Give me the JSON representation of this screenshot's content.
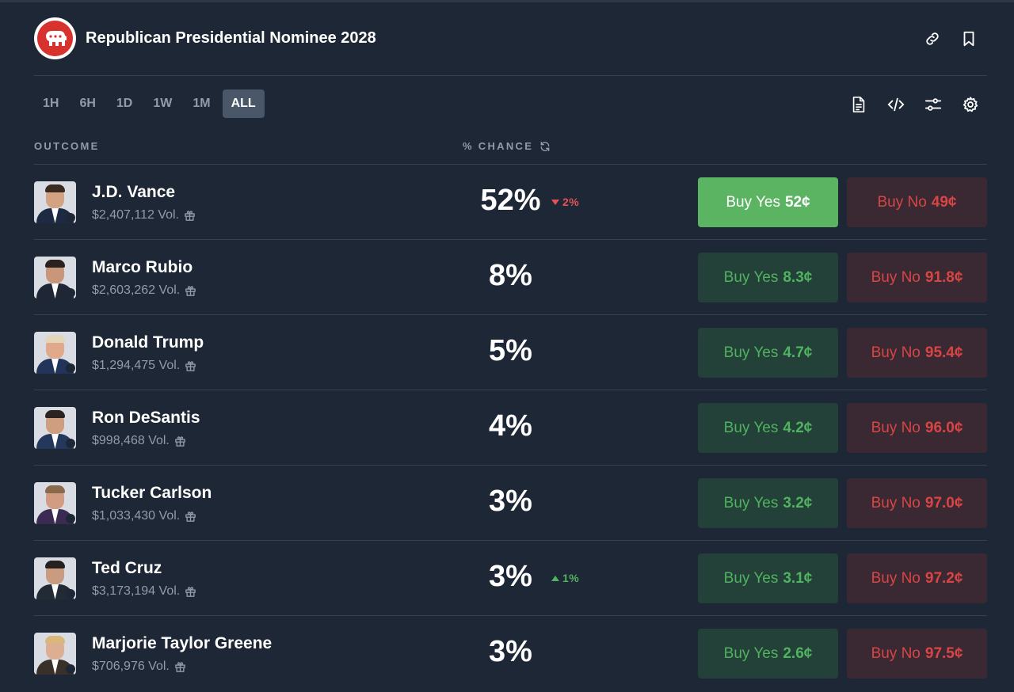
{
  "market": {
    "title": "Republican Presidential Nominee 2028",
    "logo_icon": "republican-elephant-icon"
  },
  "header_actions": [
    "link-icon",
    "bookmark-icon"
  ],
  "time_ranges": [
    "1H",
    "6H",
    "1D",
    "1W",
    "1M",
    "ALL"
  ],
  "active_range": "ALL",
  "tools": [
    "document-icon",
    "code-icon",
    "sliders-icon",
    "settings-icon"
  ],
  "columns": {
    "outcome": "OUTCOME",
    "chance": "% CHANCE"
  },
  "colors": {
    "background": "#1e2735",
    "yes_green": "#4fb35f",
    "yes_primary": "#5bb462",
    "no_red": "#d84545",
    "down_red": "#e25454"
  },
  "outcomes": [
    {
      "name": "J.D. Vance",
      "volume": "$2,407,112 Vol.",
      "chance": "52%",
      "change": "2%",
      "change_dir": "down",
      "yes_label": "Buy Yes",
      "yes_price": "52¢",
      "no_label": "Buy No",
      "no_price": "49¢",
      "highlight": true
    },
    {
      "name": "Marco Rubio",
      "volume": "$2,603,262 Vol.",
      "chance": "8%",
      "change": "",
      "change_dir": "",
      "yes_label": "Buy Yes",
      "yes_price": "8.3¢",
      "no_label": "Buy No",
      "no_price": "91.8¢",
      "highlight": false
    },
    {
      "name": "Donald Trump",
      "volume": "$1,294,475 Vol.",
      "chance": "5%",
      "change": "",
      "change_dir": "",
      "yes_label": "Buy Yes",
      "yes_price": "4.7¢",
      "no_label": "Buy No",
      "no_price": "95.4¢",
      "highlight": false
    },
    {
      "name": "Ron DeSantis",
      "volume": "$998,468 Vol.",
      "chance": "4%",
      "change": "",
      "change_dir": "",
      "yes_label": "Buy Yes",
      "yes_price": "4.2¢",
      "no_label": "Buy No",
      "no_price": "96.0¢",
      "highlight": false
    },
    {
      "name": "Tucker Carlson",
      "volume": "$1,033,430 Vol.",
      "chance": "3%",
      "change": "",
      "change_dir": "",
      "yes_label": "Buy Yes",
      "yes_price": "3.2¢",
      "no_label": "Buy No",
      "no_price": "97.0¢",
      "highlight": false
    },
    {
      "name": "Ted Cruz",
      "volume": "$3,173,194 Vol.",
      "chance": "3%",
      "change": "1%",
      "change_dir": "up",
      "yes_label": "Buy Yes",
      "yes_price": "3.1¢",
      "no_label": "Buy No",
      "no_price": "97.2¢",
      "highlight": false
    },
    {
      "name": "Marjorie Taylor Greene",
      "volume": "$706,976 Vol.",
      "chance": "3%",
      "change": "",
      "change_dir": "",
      "yes_label": "Buy Yes",
      "yes_price": "2.6¢",
      "no_label": "Buy No",
      "no_price": "97.5¢",
      "highlight": false
    }
  ]
}
